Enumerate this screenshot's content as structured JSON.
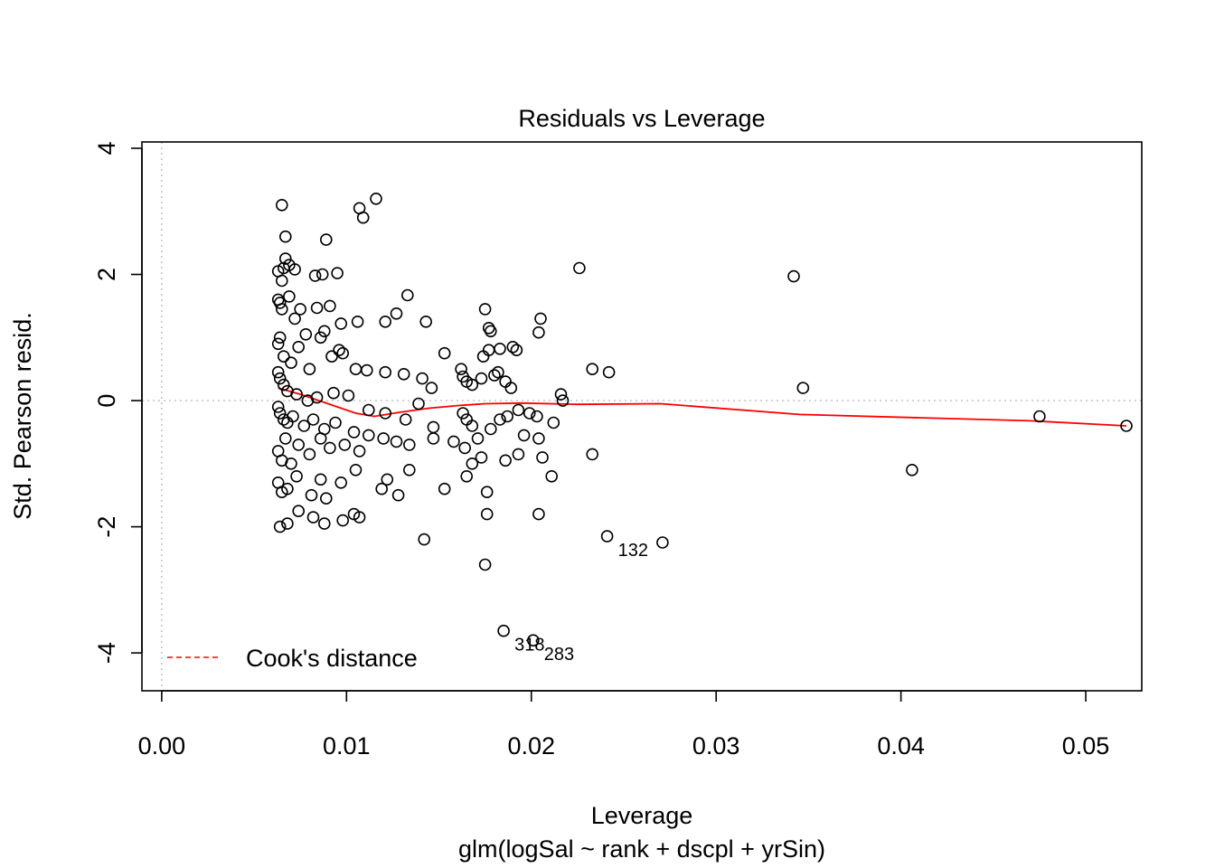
{
  "chart_data": {
    "type": "scatter",
    "title": "Residuals vs Leverage",
    "xlabel": "Leverage",
    "subtitle": "glm(logSal ~ rank + dscpl + yrSin)",
    "ylabel": "Std. Pearson resid.",
    "xlim": [
      -0.00107,
      0.05303
    ],
    "ylim": [
      -4.6,
      4.1
    ],
    "x_ticks": [
      "0.00",
      "0.01",
      "0.02",
      "0.03",
      "0.04",
      "0.05"
    ],
    "x_tick_values": [
      0,
      0.01,
      0.02,
      0.03,
      0.04,
      0.05
    ],
    "y_ticks": [
      "-4",
      "-2",
      "0",
      "2",
      "4"
    ],
    "y_tick_values": [
      -4,
      -2,
      0,
      2,
      4
    ],
    "grid": false,
    "reference_lines": {
      "x": 0,
      "y": 0,
      "style": "dotted",
      "color": "#bebebe"
    },
    "legend": {
      "position": "bottom-left",
      "entries": [
        {
          "label": "Cook's distance",
          "color": "#ff0000",
          "style": "dashed"
        }
      ]
    },
    "colors": {
      "points": "#000000",
      "smooth": "#ff0000"
    },
    "smoother": {
      "x": [
        0.0063,
        0.0075,
        0.009,
        0.0105,
        0.0115,
        0.013,
        0.0145,
        0.016,
        0.0175,
        0.0195,
        0.0225,
        0.027,
        0.0345,
        0.047,
        0.0522
      ],
      "y": [
        0.2,
        0.1,
        -0.05,
        -0.2,
        -0.25,
        -0.18,
        -0.12,
        -0.08,
        -0.05,
        -0.04,
        -0.06,
        -0.05,
        -0.22,
        -0.32,
        -0.4
      ]
    },
    "labeled_points": [
      {
        "x": 0.0241,
        "y": -2.15,
        "label": "132"
      },
      {
        "x": 0.0185,
        "y": -3.65,
        "label": "318"
      },
      {
        "x": 0.0201,
        "y": -3.8,
        "label": "283"
      }
    ],
    "points": [
      [
        0.0065,
        3.1
      ],
      [
        0.0107,
        3.05
      ],
      [
        0.0116,
        3.2
      ],
      [
        0.0109,
        2.9
      ],
      [
        0.0067,
        2.6
      ],
      [
        0.0089,
        2.55
      ],
      [
        0.0067,
        2.25
      ],
      [
        0.0069,
        2.15
      ],
      [
        0.0066,
        2.1
      ],
      [
        0.0072,
        2.08
      ],
      [
        0.0063,
        2.05
      ],
      [
        0.0065,
        1.9
      ],
      [
        0.0083,
        1.98
      ],
      [
        0.0087,
        2.0
      ],
      [
        0.0095,
        2.02
      ],
      [
        0.0226,
        2.1
      ],
      [
        0.0342,
        1.97
      ],
      [
        0.0133,
        1.67
      ],
      [
        0.0063,
        1.6
      ],
      [
        0.0064,
        1.55
      ],
      [
        0.0065,
        1.45
      ],
      [
        0.0069,
        1.65
      ],
      [
        0.0075,
        1.45
      ],
      [
        0.0084,
        1.47
      ],
      [
        0.0091,
        1.5
      ],
      [
        0.0175,
        1.45
      ],
      [
        0.0127,
        1.38
      ],
      [
        0.0121,
        1.25
      ],
      [
        0.0106,
        1.25
      ],
      [
        0.0143,
        1.25
      ],
      [
        0.0097,
        1.22
      ],
      [
        0.0178,
        1.1
      ],
      [
        0.0177,
        1.15
      ],
      [
        0.0204,
        1.08
      ],
      [
        0.0205,
        1.3
      ],
      [
        0.0064,
        1.0
      ],
      [
        0.0086,
        1.0
      ],
      [
        0.0088,
        1.1
      ],
      [
        0.0072,
        1.3
      ],
      [
        0.0078,
        1.05
      ],
      [
        0.019,
        0.85
      ],
      [
        0.0192,
        0.8
      ],
      [
        0.0153,
        0.75
      ],
      [
        0.0174,
        0.7
      ],
      [
        0.0177,
        0.8
      ],
      [
        0.0183,
        0.82
      ],
      [
        0.0233,
        0.5
      ],
      [
        0.0242,
        0.45
      ],
      [
        0.0063,
        0.9
      ],
      [
        0.0066,
        0.7
      ],
      [
        0.007,
        0.6
      ],
      [
        0.0074,
        0.85
      ],
      [
        0.008,
        0.5
      ],
      [
        0.0092,
        0.7
      ],
      [
        0.0096,
        0.8
      ],
      [
        0.0098,
        0.75
      ],
      [
        0.0105,
        0.5
      ],
      [
        0.0111,
        0.48
      ],
      [
        0.0121,
        0.45
      ],
      [
        0.0131,
        0.42
      ],
      [
        0.0141,
        0.35
      ],
      [
        0.0146,
        0.2
      ],
      [
        0.0162,
        0.5
      ],
      [
        0.0163,
        0.38
      ],
      [
        0.0165,
        0.3
      ],
      [
        0.0168,
        0.25
      ],
      [
        0.0173,
        0.35
      ],
      [
        0.018,
        0.4
      ],
      [
        0.0182,
        0.45
      ],
      [
        0.0186,
        0.3
      ],
      [
        0.0189,
        0.2
      ],
      [
        0.0063,
        0.45
      ],
      [
        0.0064,
        0.35
      ],
      [
        0.0066,
        0.25
      ],
      [
        0.0068,
        0.15
      ],
      [
        0.0073,
        0.1
      ],
      [
        0.0079,
        0.0
      ],
      [
        0.0084,
        0.05
      ],
      [
        0.0093,
        0.12
      ],
      [
        0.0101,
        0.08
      ],
      [
        0.0347,
        0.2
      ],
      [
        0.0216,
        0.1
      ],
      [
        0.0217,
        0.0
      ],
      [
        0.0063,
        -0.1
      ],
      [
        0.0064,
        -0.2
      ],
      [
        0.0066,
        -0.3
      ],
      [
        0.0068,
        -0.35
      ],
      [
        0.0071,
        -0.25
      ],
      [
        0.0077,
        -0.4
      ],
      [
        0.0082,
        -0.3
      ],
      [
        0.0088,
        -0.45
      ],
      [
        0.0094,
        -0.35
      ],
      [
        0.0104,
        -0.5
      ],
      [
        0.0112,
        -0.15
      ],
      [
        0.0121,
        -0.2
      ],
      [
        0.0132,
        -0.3
      ],
      [
        0.0139,
        -0.05
      ],
      [
        0.0147,
        -0.42
      ],
      [
        0.0158,
        -0.65
      ],
      [
        0.0163,
        -0.2
      ],
      [
        0.0165,
        -0.3
      ],
      [
        0.0168,
        -0.4
      ],
      [
        0.0171,
        -0.6
      ],
      [
        0.0178,
        -0.45
      ],
      [
        0.0183,
        -0.3
      ],
      [
        0.0187,
        -0.25
      ],
      [
        0.0193,
        -0.15
      ],
      [
        0.0199,
        -0.2
      ],
      [
        0.0203,
        -0.25
      ],
      [
        0.0212,
        -0.35
      ],
      [
        0.0196,
        -0.55
      ],
      [
        0.0204,
        -0.6
      ],
      [
        0.0475,
        -0.25
      ],
      [
        0.0522,
        -0.4
      ],
      [
        0.0063,
        -0.8
      ],
      [
        0.0065,
        -0.95
      ],
      [
        0.0067,
        -0.6
      ],
      [
        0.007,
        -1.0
      ],
      [
        0.0074,
        -0.7
      ],
      [
        0.008,
        -0.85
      ],
      [
        0.0086,
        -0.6
      ],
      [
        0.0091,
        -0.75
      ],
      [
        0.0099,
        -0.7
      ],
      [
        0.0107,
        -0.8
      ],
      [
        0.0112,
        -0.55
      ],
      [
        0.012,
        -0.6
      ],
      [
        0.0127,
        -0.65
      ],
      [
        0.0134,
        -0.7
      ],
      [
        0.0147,
        -0.6
      ],
      [
        0.0164,
        -0.75
      ],
      [
        0.0168,
        -1.0
      ],
      [
        0.0173,
        -0.9
      ],
      [
        0.0186,
        -0.95
      ],
      [
        0.0193,
        -0.85
      ],
      [
        0.0206,
        -0.9
      ],
      [
        0.0233,
        -0.85
      ],
      [
        0.0063,
        -1.3
      ],
      [
        0.0065,
        -1.45
      ],
      [
        0.0068,
        -1.4
      ],
      [
        0.0073,
        -1.2
      ],
      [
        0.0081,
        -1.5
      ],
      [
        0.0086,
        -1.25
      ],
      [
        0.0089,
        -1.55
      ],
      [
        0.0097,
        -1.3
      ],
      [
        0.0105,
        -1.1
      ],
      [
        0.0119,
        -1.4
      ],
      [
        0.0122,
        -1.25
      ],
      [
        0.0128,
        -1.5
      ],
      [
        0.0134,
        -1.1
      ],
      [
        0.0153,
        -1.4
      ],
      [
        0.0165,
        -1.2
      ],
      [
        0.0176,
        -1.45
      ],
      [
        0.0211,
        -1.2
      ],
      [
        0.0406,
        -1.1
      ],
      [
        0.0064,
        -2.0
      ],
      [
        0.0068,
        -1.95
      ],
      [
        0.0074,
        -1.75
      ],
      [
        0.0082,
        -1.85
      ],
      [
        0.0088,
        -1.95
      ],
      [
        0.0098,
        -1.9
      ],
      [
        0.0104,
        -1.8
      ],
      [
        0.0107,
        -1.85
      ],
      [
        0.0176,
        -1.8
      ],
      [
        0.0204,
        -1.8
      ],
      [
        0.0142,
        -2.2
      ],
      [
        0.0241,
        -2.15
      ],
      [
        0.0271,
        -2.25
      ],
      [
        0.0175,
        -2.6
      ],
      [
        0.0185,
        -3.65
      ],
      [
        0.0201,
        -3.8
      ]
    ]
  }
}
